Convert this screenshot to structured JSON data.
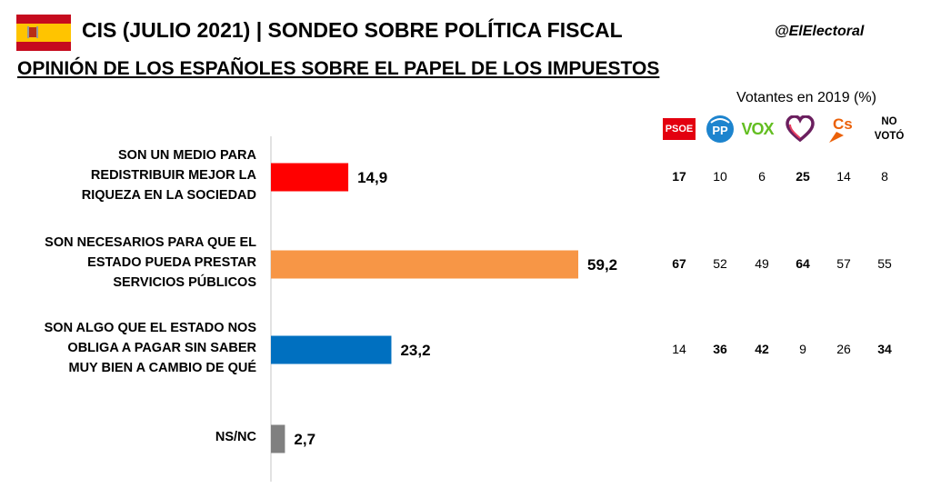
{
  "header": {
    "title": "CIS (JULIO 2021) | SONDEO SOBRE POLÍTICA FISCAL",
    "handle": "@ElElectoral",
    "subtitle": "OPINIÓN DE LOS ESPAÑOLES SOBRE EL PAPEL DE LOS IMPUESTOS"
  },
  "chart_data": {
    "type": "bar",
    "orientation": "horizontal",
    "categories": [
      [
        "SON UN MEDIO PARA",
        "REDISTRIBUIR MEJOR LA",
        "RIQUEZA EN LA SOCIEDAD"
      ],
      [
        "SON NECESARIOS PARA QUE EL",
        "ESTADO PUEDA PRESTAR",
        "SERVICIOS PÚBLICOS"
      ],
      [
        "SON ALGO QUE EL ESTADO NOS",
        "OBLIGA A PAGAR SIN SABER",
        "MUY BIEN A CAMBIO DE QUÉ"
      ],
      [
        "NS/NC"
      ]
    ],
    "values": [
      14.9,
      59.2,
      23.2,
      2.7
    ],
    "value_labels": [
      "14,9",
      "59,2",
      "23,2",
      "2,7"
    ],
    "colors": [
      "#ff0000",
      "#f79646",
      "#0070c0",
      "#808080"
    ],
    "xlim": [
      0,
      80
    ],
    "grid": false
  },
  "votantes": {
    "header": "Votantes en 2019 (%)",
    "parties": [
      {
        "name": "PSOE",
        "logo": "psoe-logo"
      },
      {
        "name": "PP",
        "logo": "pp-logo"
      },
      {
        "name": "VOX",
        "logo": "vox-logo"
      },
      {
        "name": "PODEMOS",
        "logo": "podemos-heart-logo"
      },
      {
        "name": "Cs",
        "logo": "cs-logo"
      },
      {
        "name": "NO VOTÓ",
        "lines": [
          "NO",
          "VOTÓ"
        ]
      }
    ],
    "rows": [
      [
        {
          "v": "17",
          "b": true
        },
        {
          "v": "10"
        },
        {
          "v": "6"
        },
        {
          "v": "25",
          "b": true
        },
        {
          "v": "14"
        },
        {
          "v": "8"
        }
      ],
      [
        {
          "v": "67",
          "b": true
        },
        {
          "v": "52"
        },
        {
          "v": "49"
        },
        {
          "v": "64",
          "b": true
        },
        {
          "v": "57"
        },
        {
          "v": "55"
        }
      ],
      [
        {
          "v": "14"
        },
        {
          "v": "36",
          "b": true
        },
        {
          "v": "42",
          "b": true
        },
        {
          "v": "9"
        },
        {
          "v": "26"
        },
        {
          "v": "34",
          "b": true
        }
      ],
      []
    ]
  },
  "colors": {
    "flag_red": "#c60b1e",
    "flag_yellow": "#ffc400",
    "psoe_red": "#e3000f",
    "pp_blue": "#1d84ce",
    "vox_green": "#63be21",
    "podemos_purple": "#6b1f5f",
    "cs_orange": "#eb6109"
  }
}
